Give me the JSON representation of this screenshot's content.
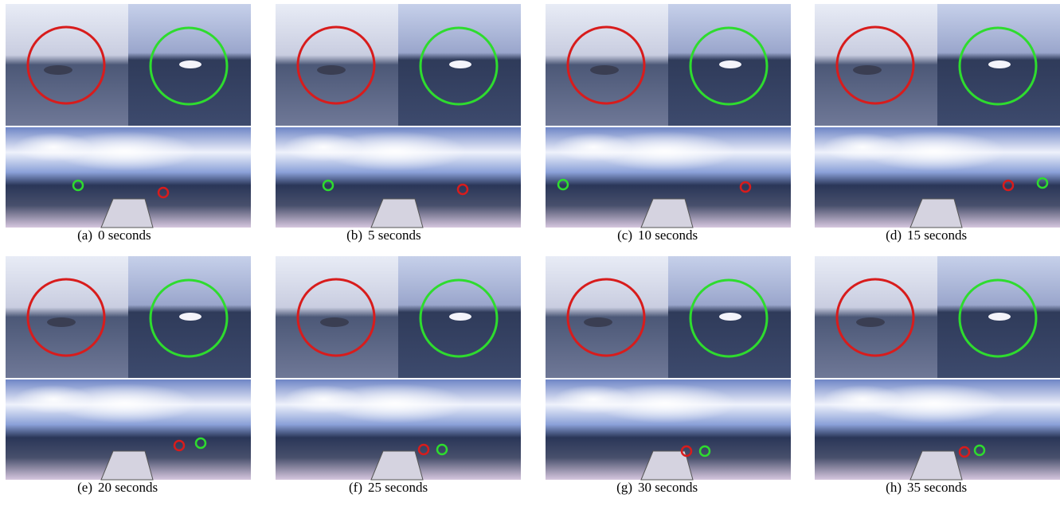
{
  "panels": [
    {
      "label": "(a)",
      "caption": "0 seconds"
    },
    {
      "label": "(b)",
      "caption": "5 seconds"
    },
    {
      "label": "(c)",
      "caption": "10 seconds"
    },
    {
      "label": "(d)",
      "caption": "15 seconds"
    },
    {
      "label": "(e)",
      "caption": "20 seconds"
    },
    {
      "label": "(f)",
      "caption": "25 seconds"
    },
    {
      "label": "(g)",
      "caption": "30 seconds"
    },
    {
      "label": "(h)",
      "caption": "35 seconds"
    }
  ]
}
